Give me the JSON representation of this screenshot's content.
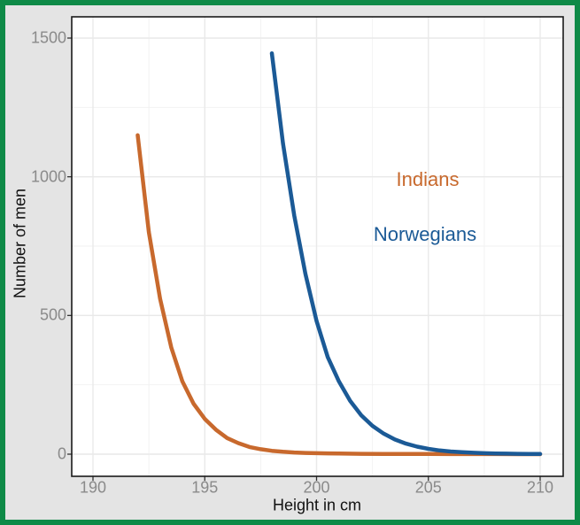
{
  "figure": {
    "frame_color": "#0e8a47",
    "background_color": "#e4e4e4",
    "panel_color": "#ffffff",
    "panel_border_color": "#1a1a1a",
    "grid_major_color": "#e9e9e9",
    "grid_minor_color": "#f2f2f2",
    "tick_mark_color": "#333333",
    "tick_label_color": "#8a8a8a"
  },
  "chart_data": {
    "type": "line",
    "title": "",
    "xlabel": "Height in cm",
    "ylabel": "Number of men",
    "xlim": [
      189.05,
      211.0
    ],
    "ylim": [
      -80,
      1577
    ],
    "x_ticks": [
      190,
      195,
      200,
      205,
      210
    ],
    "x_tick_labels": [
      "190",
      "195",
      "200",
      "205",
      "210"
    ],
    "y_ticks": [
      0,
      500,
      1000,
      1500
    ],
    "y_tick_labels": [
      "0",
      "500",
      "1000",
      "1500"
    ],
    "x_minor_ticks": [
      192.5,
      197.5,
      202.5,
      207.5
    ],
    "y_minor_ticks": [
      250,
      750,
      1250
    ],
    "grid": true,
    "legend_position": "text annotations inside plot, upper right",
    "line_width": 4.5,
    "series": [
      {
        "name": "Indians",
        "color": "#c8692d",
        "x": [
          192,
          192.5,
          193,
          193.5,
          194,
          194.5,
          195,
          195.5,
          196,
          196.5,
          197,
          197.5,
          198,
          198.5,
          199,
          199.5,
          200,
          200.5,
          201,
          202,
          203,
          204,
          205,
          206,
          207,
          208,
          209,
          210
        ],
        "y": [
          1150,
          800,
          560,
          385,
          262,
          182,
          127,
          88,
          58,
          40,
          26,
          18,
          12,
          8.5,
          6,
          4.5,
          3.5,
          2.8,
          2.2,
          1.4,
          1,
          0.7,
          0.5,
          0.4,
          0.3,
          0.2,
          0.15,
          0.1
        ]
      },
      {
        "name": "Norwegians",
        "color": "#1b5a96",
        "x": [
          198,
          198.5,
          199,
          199.5,
          200,
          200.5,
          201,
          201.5,
          202,
          202.5,
          203,
          203.5,
          204,
          204.5,
          205,
          205.5,
          206,
          206.5,
          207,
          207.5,
          208,
          208.5,
          209,
          209.5,
          210
        ],
        "y": [
          1445,
          1120,
          860,
          650,
          480,
          350,
          262,
          192,
          140,
          102,
          74,
          53,
          38,
          27,
          19,
          13.5,
          9.5,
          7,
          5,
          3.5,
          2.5,
          1.8,
          1.2,
          0.8,
          0.5
        ]
      }
    ],
    "annotations": [
      {
        "text": "Indians",
        "color": "#c8692d",
        "x": 205.0,
        "y": 990
      },
      {
        "text": "Norwegians",
        "color": "#1b5a96",
        "x": 204.85,
        "y": 792
      }
    ]
  }
}
